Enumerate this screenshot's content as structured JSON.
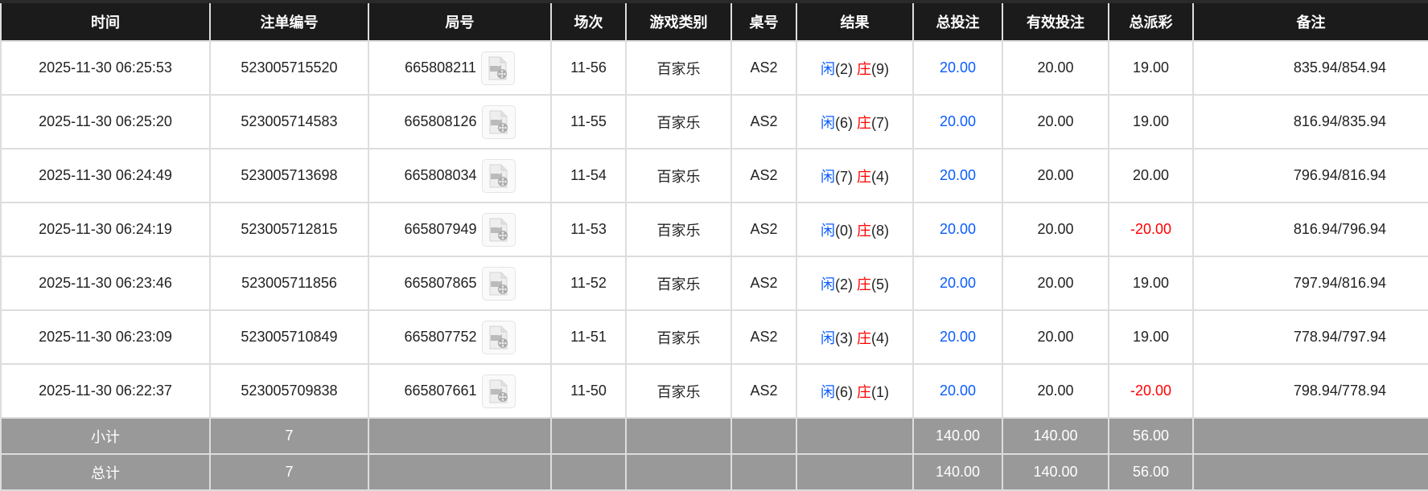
{
  "headers": [
    "时间",
    "注单编号",
    "局号",
    "场次",
    "游戏类别",
    "桌号",
    "结果",
    "总投注",
    "有效投注",
    "总派彩",
    "备注"
  ],
  "rows": [
    {
      "time": "2025-11-30 06:25:53",
      "bet_id": "523005715520",
      "round": "665808211",
      "session": "11-56",
      "game": "百家乐",
      "table": "AS2",
      "player_label": "闲",
      "player": "(2)",
      "banker_label": "庄",
      "banker": "(9)",
      "total_bet": "20.00",
      "valid_bet": "20.00",
      "payout": "19.00",
      "payout_negative": false,
      "remark": "835.94/854.94"
    },
    {
      "time": "2025-11-30 06:25:20",
      "bet_id": "523005714583",
      "round": "665808126",
      "session": "11-55",
      "game": "百家乐",
      "table": "AS2",
      "player_label": "闲",
      "player": "(6)",
      "banker_label": "庄",
      "banker": "(7)",
      "total_bet": "20.00",
      "valid_bet": "20.00",
      "payout": "19.00",
      "payout_negative": false,
      "remark": "816.94/835.94"
    },
    {
      "time": "2025-11-30 06:24:49",
      "bet_id": "523005713698",
      "round": "665808034",
      "session": "11-54",
      "game": "百家乐",
      "table": "AS2",
      "player_label": "闲",
      "player": "(7)",
      "banker_label": "庄",
      "banker": "(4)",
      "total_bet": "20.00",
      "valid_bet": "20.00",
      "payout": "20.00",
      "payout_negative": false,
      "remark": "796.94/816.94"
    },
    {
      "time": "2025-11-30 06:24:19",
      "bet_id": "523005712815",
      "round": "665807949",
      "session": "11-53",
      "game": "百家乐",
      "table": "AS2",
      "player_label": "闲",
      "player": "(0)",
      "banker_label": "庄",
      "banker": "(8)",
      "total_bet": "20.00",
      "valid_bet": "20.00",
      "payout": "-20.00",
      "payout_negative": true,
      "remark": "816.94/796.94"
    },
    {
      "time": "2025-11-30 06:23:46",
      "bet_id": "523005711856",
      "round": "665807865",
      "session": "11-52",
      "game": "百家乐",
      "table": "AS2",
      "player_label": "闲",
      "player": "(2)",
      "banker_label": "庄",
      "banker": "(5)",
      "total_bet": "20.00",
      "valid_bet": "20.00",
      "payout": "19.00",
      "payout_negative": false,
      "remark": "797.94/816.94"
    },
    {
      "time": "2025-11-30 06:23:09",
      "bet_id": "523005710849",
      "round": "665807752",
      "session": "11-51",
      "game": "百家乐",
      "table": "AS2",
      "player_label": "闲",
      "player": "(3)",
      "banker_label": "庄",
      "banker": "(4)",
      "total_bet": "20.00",
      "valid_bet": "20.00",
      "payout": "19.00",
      "payout_negative": false,
      "remark": "778.94/797.94"
    },
    {
      "time": "2025-11-30 06:22:37",
      "bet_id": "523005709838",
      "round": "665807661",
      "session": "11-50",
      "game": "百家乐",
      "table": "AS2",
      "player_label": "闲",
      "player": "(6)",
      "banker_label": "庄",
      "banker": "(1)",
      "total_bet": "20.00",
      "valid_bet": "20.00",
      "payout": "-20.00",
      "payout_negative": true,
      "remark": "798.94/778.94"
    }
  ],
  "subtotal": {
    "label": "小计",
    "count": "7",
    "total_bet": "140.00",
    "valid_bet": "140.00",
    "payout": "56.00"
  },
  "total": {
    "label": "总计",
    "count": "7",
    "total_bet": "140.00",
    "valid_bet": "140.00",
    "payout": "56.00"
  },
  "icons": {
    "replay": "video-replay-icon"
  },
  "colors": {
    "header_bg": "#1b1b1b",
    "footer_bg": "#999999",
    "player": "#0a5cff",
    "banker": "#ff0000",
    "negative": "#ff0000",
    "total_bet": "#0a5cff"
  }
}
